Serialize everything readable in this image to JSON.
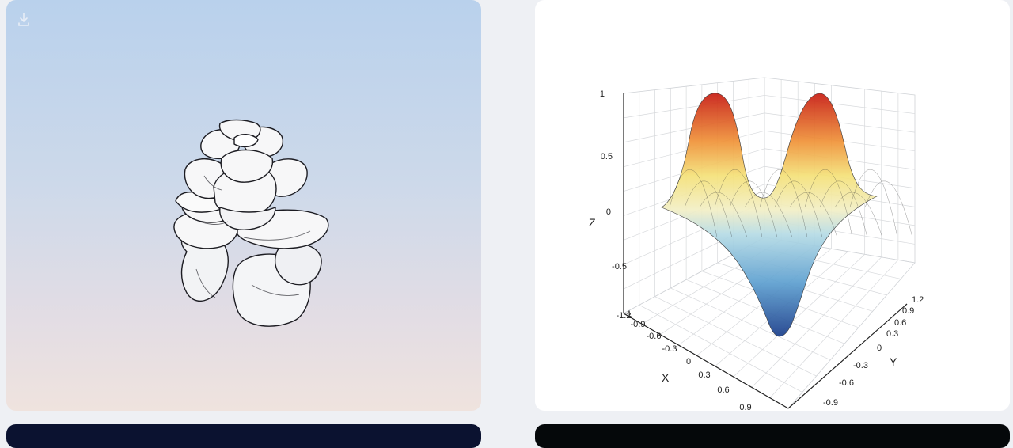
{
  "gallery": {
    "rose_card": {
      "download_icon": "download-icon",
      "image": "rose-3d-render"
    },
    "plot_card": {
      "chart_data": {
        "type": "surface",
        "zlabel": "Z",
        "xlabel": "X",
        "ylabel": "Y",
        "z_ticks": [
          "1",
          "0.5",
          "0",
          "-0.5",
          "-1"
        ],
        "x_ticks": [
          "-1.2",
          "-0.9",
          "-0.6",
          "-0.3",
          "0",
          "0.3",
          "0.6",
          "0.9"
        ],
        "y_ticks": [
          "1.2",
          "0.9",
          "0.6",
          "0.3",
          "0",
          "-0.3",
          "-0.6",
          "-0.9"
        ],
        "zlim": [
          -1,
          1
        ],
        "xlim": [
          -1.2,
          0.9
        ],
        "ylim": [
          -0.9,
          1.2
        ],
        "colormap": "jet",
        "grid": true
      }
    }
  }
}
